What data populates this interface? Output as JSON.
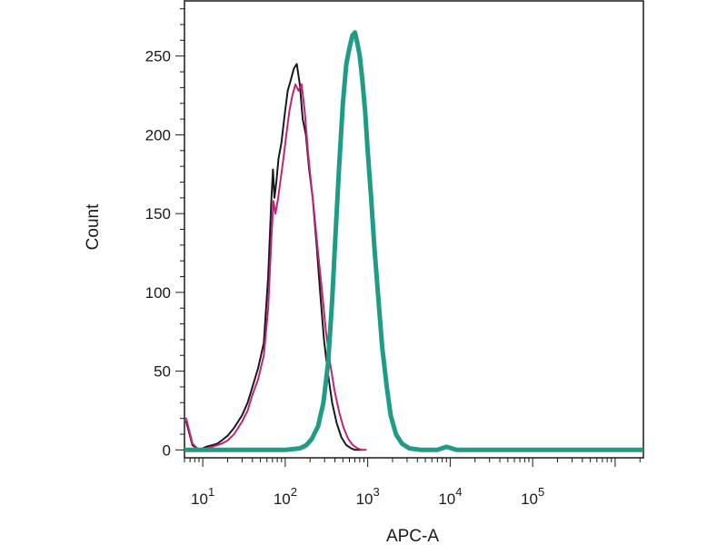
{
  "chart_data": {
    "type": "line",
    "xlabel": "APC-A",
    "ylabel": "Count",
    "x_scale": "log",
    "xlim": [
      6,
      2200000
    ],
    "ylim": [
      -5,
      285
    ],
    "y_ticks": [
      {
        "value": 0,
        "label": "0"
      },
      {
        "value": 50,
        "label": "50"
      },
      {
        "value": 100,
        "label": "100"
      },
      {
        "value": 150,
        "label": "150"
      },
      {
        "value": 200,
        "label": "200"
      },
      {
        "value": 250,
        "label": "250"
      }
    ],
    "x_ticks": [
      {
        "value": 10,
        "base": "10",
        "exp": "1"
      },
      {
        "value": 100,
        "base": "10",
        "exp": "2"
      },
      {
        "value": 1000,
        "base": "10",
        "exp": "3"
      },
      {
        "value": 10000,
        "base": "10",
        "exp": "4"
      },
      {
        "value": 100000,
        "base": "10",
        "exp": "5"
      }
    ],
    "grid": false,
    "legend": "none",
    "series": [
      {
        "color": "#1a1a1a",
        "stroke_width": 2,
        "x": [
          6.3,
          7.5,
          9,
          10,
          11,
          13,
          15,
          17,
          20,
          24,
          30,
          35,
          40,
          47,
          55,
          62,
          68,
          71,
          74,
          78,
          83,
          90,
          98,
          107,
          117,
          127,
          138,
          150,
          163,
          178,
          195,
          215,
          240,
          265,
          295,
          330,
          370,
          420,
          480,
          550,
          630,
          700,
          780,
          850
        ],
        "y": [
          18,
          3,
          0,
          1,
          2,
          3,
          4,
          6,
          9,
          14,
          22,
          30,
          40,
          52,
          68,
          110,
          160,
          178,
          160,
          170,
          185,
          195,
          212,
          228,
          235,
          242,
          245,
          232,
          210,
          200,
          178,
          160,
          130,
          100,
          70,
          48,
          30,
          17,
          8,
          3,
          1,
          0,
          0,
          0
        ]
      },
      {
        "color": "#c0237a",
        "stroke_width": 2,
        "x": [
          6.3,
          7.5,
          9,
          10,
          11,
          13,
          15,
          17,
          20,
          24,
          30,
          35,
          40,
          47,
          55,
          62,
          68,
          72,
          76,
          82,
          88,
          95,
          103,
          112,
          122,
          133,
          145,
          158,
          172,
          188,
          205,
          225,
          250,
          280,
          310,
          350,
          395,
          450,
          510,
          580,
          660,
          750,
          850,
          950
        ],
        "y": [
          20,
          4,
          0,
          0,
          1,
          2,
          3,
          4,
          6,
          10,
          18,
          25,
          35,
          45,
          60,
          90,
          135,
          158,
          150,
          160,
          172,
          185,
          200,
          215,
          225,
          232,
          228,
          232,
          215,
          190,
          170,
          150,
          125,
          100,
          76,
          55,
          38,
          24,
          14,
          7,
          3,
          1,
          0,
          0
        ]
      },
      {
        "color": "#1f9c86",
        "stroke_width": 5,
        "x": [
          6,
          50,
          100,
          150,
          180,
          210,
          250,
          290,
          330,
          370,
          410,
          450,
          500,
          550,
          600,
          650,
          700,
          750,
          800,
          860,
          930,
          1000,
          1100,
          1200,
          1350,
          1500,
          1700,
          1900,
          2200,
          2600,
          3200,
          4500,
          7000,
          9000,
          12000,
          20000,
          100000,
          2200000
        ],
        "y": [
          0,
          0,
          0,
          1,
          3,
          7,
          15,
          30,
          55,
          95,
          140,
          180,
          220,
          245,
          255,
          263,
          265,
          258,
          250,
          235,
          215,
          190,
          160,
          130,
          95,
          65,
          40,
          22,
          10,
          4,
          1,
          0,
          0,
          2,
          0,
          0,
          0,
          0
        ]
      }
    ]
  }
}
